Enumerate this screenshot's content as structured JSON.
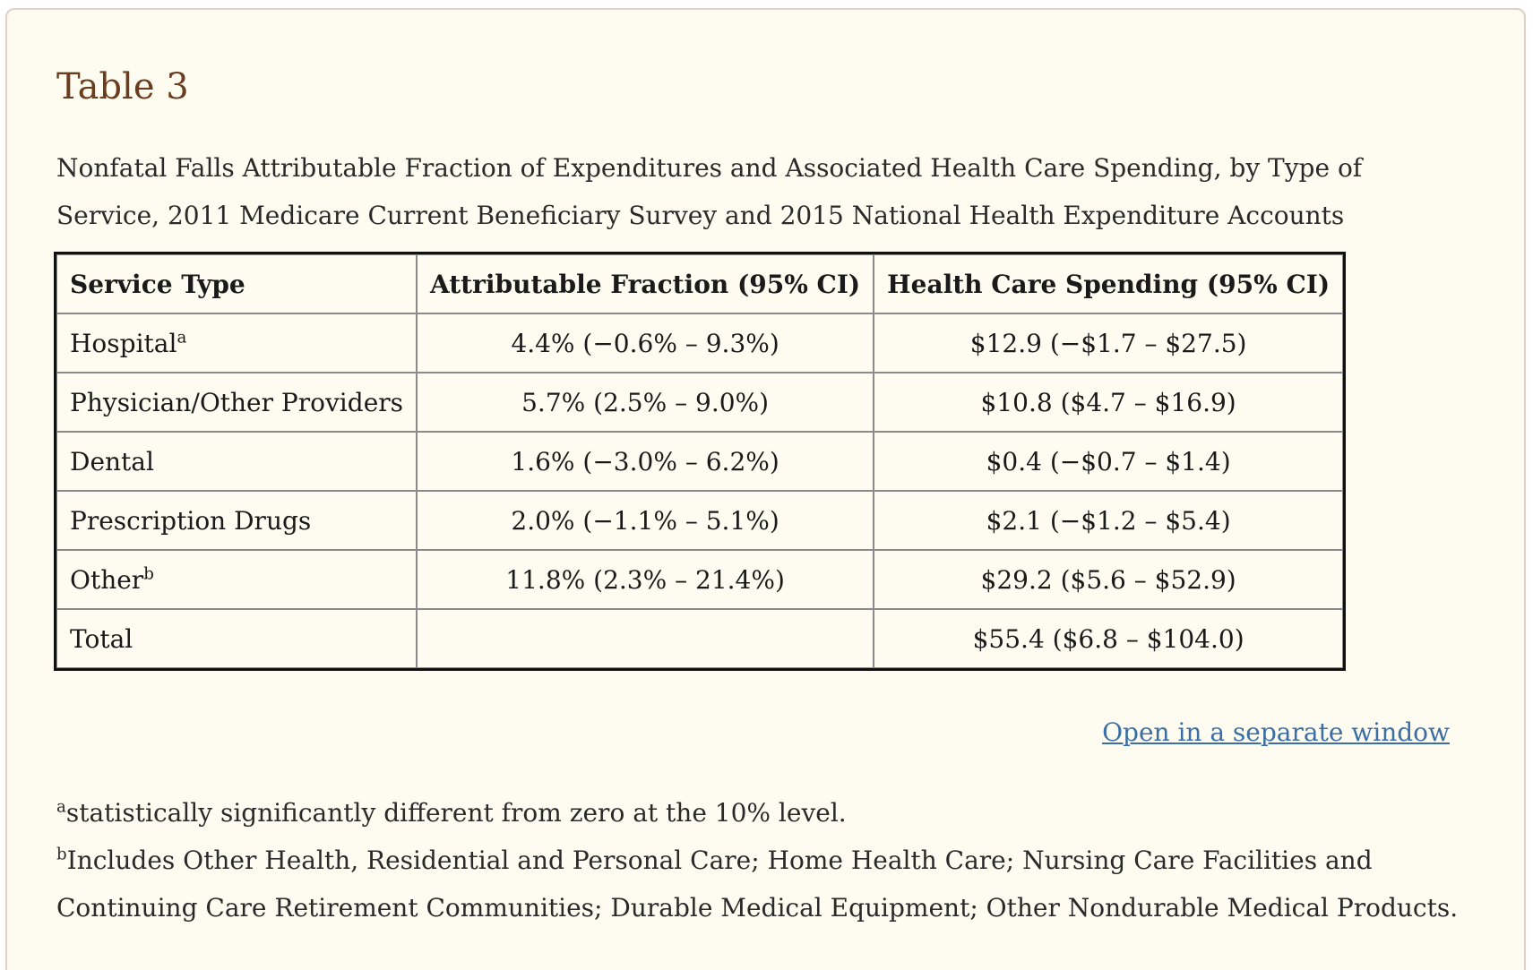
{
  "title": "Table 3",
  "caption": "Nonfatal Falls Attributable Fraction of Expenditures and Associated Health Care Spending, by Type of Service, 2011 Medicare Current Beneficiary Survey and 2015 National Health Expenditure Accounts",
  "table": {
    "headers": [
      "Service Type",
      "Attributable Fraction (95% CI)",
      "Health Care Spending (95% CI)"
    ],
    "rows": [
      {
        "service": "Hospital",
        "sup": "a",
        "fraction": "4.4% (−0.6% – 9.3%)",
        "spending": "$12.9 (−$1.7 – $27.5)"
      },
      {
        "service": "Physician/Other Providers",
        "sup": "",
        "fraction": "5.7% (2.5% – 9.0%)",
        "spending": "$10.8 ($4.7 – $16.9)"
      },
      {
        "service": "Dental",
        "sup": "",
        "fraction": "1.6% (−3.0% – 6.2%)",
        "spending": "$0.4 (−$0.7 – $1.4)"
      },
      {
        "service": "Prescription Drugs",
        "sup": "",
        "fraction": "2.0% (−1.1% – 5.1%)",
        "spending": "$2.1 (−$1.2 – $5.4)"
      },
      {
        "service": "Other",
        "sup": "b",
        "fraction": "11.8% (2.3% – 21.4%)",
        "spending": "$29.2 ($5.6 – $52.9)"
      },
      {
        "service": "Total",
        "sup": "",
        "fraction": "",
        "spending": "$55.4 ($6.8 – $104.0)"
      }
    ]
  },
  "link": "Open in a separate window",
  "footnotes": [
    {
      "mark": "a",
      "text": "statistically significantly different from zero at the 10% level."
    },
    {
      "mark": "b",
      "text": "Includes Other Health, Residential and Personal Care; Home Health Care; Nursing Care Facilities and Continuing Care Retirement Communities; Durable Medical Equipment; Other Nondurable Medical Products."
    }
  ]
}
